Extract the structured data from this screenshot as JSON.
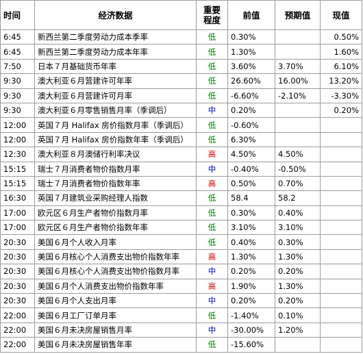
{
  "headers": {
    "time": "时间",
    "event": "经济数据",
    "importance_line1": "重要",
    "importance_line2": "程度",
    "previous": "前值",
    "forecast": "预期值",
    "actual": "现值"
  },
  "importance_colors": {
    "低": "#007a00",
    "中": "#0000cc",
    "高": "#d10000"
  },
  "rows": [
    {
      "time": "6:45",
      "event": "新西兰第二季度劳动力成本季率",
      "importance": "低",
      "previous": "0.30%",
      "forecast": "",
      "actual": "0.50%"
    },
    {
      "time": "6:45",
      "event": "新西兰第二季度劳动力成本年率",
      "importance": "低",
      "previous": "1.30%",
      "forecast": "",
      "actual": "1.60%"
    },
    {
      "time": "7:50",
      "event": "日本７月基础货币年率",
      "importance": "低",
      "previous": "3.60%",
      "forecast": "3.70%",
      "actual": "6.10%"
    },
    {
      "time": "9:30",
      "event": "澳大利亚６月营建许可年率",
      "importance": "低",
      "previous": "26.60%",
      "forecast": "16.00%",
      "actual": "13.20%"
    },
    {
      "time": "9:30",
      "event": "澳大利亚６月营建许可月率",
      "importance": "低",
      "previous": "-6.60%",
      "forecast": "-2.10%",
      "actual": "-3.30%"
    },
    {
      "time": "9:30",
      "event": "澳大利亚６月零售销售月率（季调后）",
      "importance": "中",
      "previous": "0.20%",
      "forecast": "",
      "actual": "0.20%"
    },
    {
      "time": "12:00",
      "event": "英国７月 Halifax 房价指数月率（季调后）",
      "importance": "低",
      "previous": "-0.60%",
      "forecast": "",
      "actual": ""
    },
    {
      "time": "12:00",
      "event": "英国７月 Halifax 房价指数年率（季调后）",
      "importance": "低",
      "previous": "6.30%",
      "forecast": "",
      "actual": ""
    },
    {
      "time": "12:30",
      "event": "澳大利亚８月澳储行利率决议",
      "importance": "高",
      "previous": "4.50%",
      "forecast": "4.50%",
      "actual": ""
    },
    {
      "time": "15:15",
      "event": "瑞士７月消费者物价指数月率",
      "importance": "中",
      "previous": "-0.40%",
      "forecast": "-0.50%",
      "actual": ""
    },
    {
      "time": "15:15",
      "event": "瑞士７月消费者物价指数年率",
      "importance": "高",
      "previous": "0.50%",
      "forecast": "0.70%",
      "actual": ""
    },
    {
      "time": "16:30",
      "event": "英国７月建筑业采购经理人指数",
      "importance": "低",
      "previous": "58.4",
      "forecast": "58.2",
      "actual": ""
    },
    {
      "time": "17:00",
      "event": "欧元区６月生产者物价指数月率",
      "importance": "低",
      "previous": "0.30%",
      "forecast": "0.40%",
      "actual": ""
    },
    {
      "time": "17:00",
      "event": "欧元区６月生产者物价指数年率",
      "importance": "低",
      "previous": "3.10%",
      "forecast": "3.10%",
      "actual": ""
    },
    {
      "time": "20:30",
      "event": "美国６月个人收入月率",
      "importance": "低",
      "previous": "0.40%",
      "forecast": "0.30%",
      "actual": ""
    },
    {
      "time": "20:30",
      "event": "美国６月核心个人消费支出物价指数年率",
      "importance": "高",
      "previous": "1.30%",
      "forecast": "1.30%",
      "actual": ""
    },
    {
      "time": "20:30",
      "event": "美国６月核心个人消费支出物价指数月率",
      "importance": "中",
      "previous": "0.20%",
      "forecast": "0.20%",
      "actual": ""
    },
    {
      "time": "20:30",
      "event": "美国６月个人消费支出物价指数年率",
      "importance": "高",
      "previous": "1.90%",
      "forecast": "1.30%",
      "actual": ""
    },
    {
      "time": "20:30",
      "event": "美国６月个人支出月率",
      "importance": "中",
      "previous": "0.20%",
      "forecast": "0.20%",
      "actual": ""
    },
    {
      "time": "22:00",
      "event": "美国６月工厂订单月率",
      "importance": "低",
      "previous": "-1.40%",
      "forecast": "0.10%",
      "actual": ""
    },
    {
      "time": "22:00",
      "event": "美国６月未决房屋销售月率",
      "importance": "中",
      "previous": "-30.00%",
      "forecast": "1.20%",
      "actual": ""
    },
    {
      "time": "22:00",
      "event": "美国６月未决房屋销售年率",
      "importance": "低",
      "previous": "-15.60%",
      "forecast": "",
      "actual": ""
    }
  ]
}
